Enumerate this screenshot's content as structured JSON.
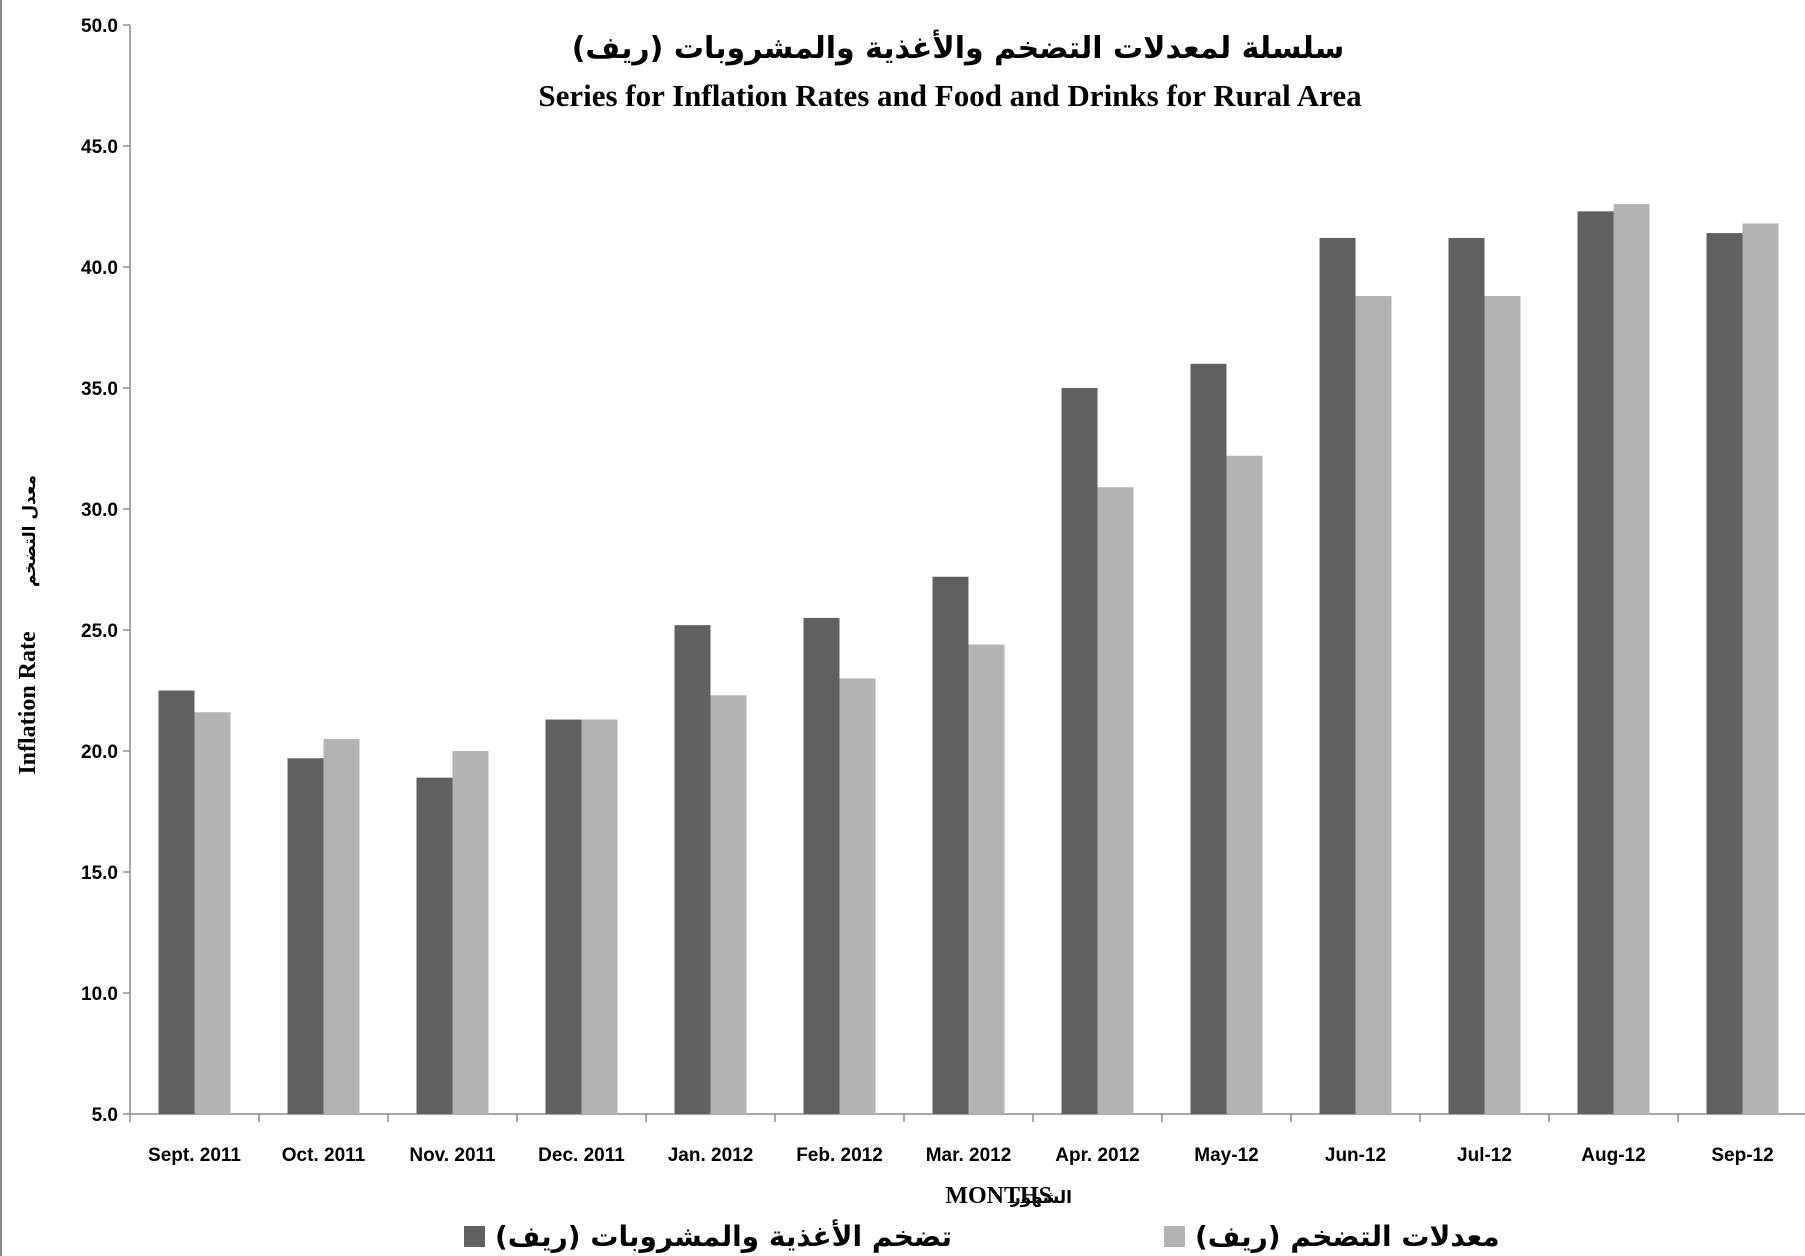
{
  "chart_data": {
    "type": "bar",
    "title_ar": "سلسلة لمعدلات التضخم والأغذية والمشروبات (ريف)",
    "title_en": "Series for Inflation Rates and Food and Drinks for Rural Area",
    "xlabel": "MONTHS",
    "xlabel_ar": "الشهور",
    "ylabel": "Inflation Rate",
    "ylabel_ar": "معدل التضخم",
    "ylim": [
      5.0,
      50.0
    ],
    "yticks": [
      "5.0",
      "10.0",
      "15.0",
      "20.0",
      "25.0",
      "30.0",
      "35.0",
      "40.0",
      "45.0",
      "50.0"
    ],
    "categories": [
      "Sept. 2011",
      "Oct. 2011",
      "Nov. 2011",
      "Dec. 2011",
      "Jan. 2012",
      "Feb. 2012",
      "Mar. 2012",
      "Apr. 2012",
      "May-12",
      "Jun-12",
      "Jul-12",
      "Aug-12",
      "Sep-12"
    ],
    "series": [
      {
        "name": "تضخم الأغذية والمشروبات (ريف)",
        "color": "#606060",
        "values": [
          22.5,
          19.7,
          18.9,
          21.3,
          25.2,
          25.5,
          27.2,
          35.0,
          36.0,
          41.2,
          41.2,
          42.3,
          41.4
        ]
      },
      {
        "name": "معدلات التضخم (ريف)",
        "color": "#b3b3b3",
        "values": [
          21.6,
          20.5,
          20.0,
          21.3,
          22.3,
          23.0,
          24.4,
          30.9,
          32.2,
          38.8,
          38.8,
          42.6,
          41.8
        ]
      }
    ],
    "legend": "bottom",
    "grid": false
  }
}
